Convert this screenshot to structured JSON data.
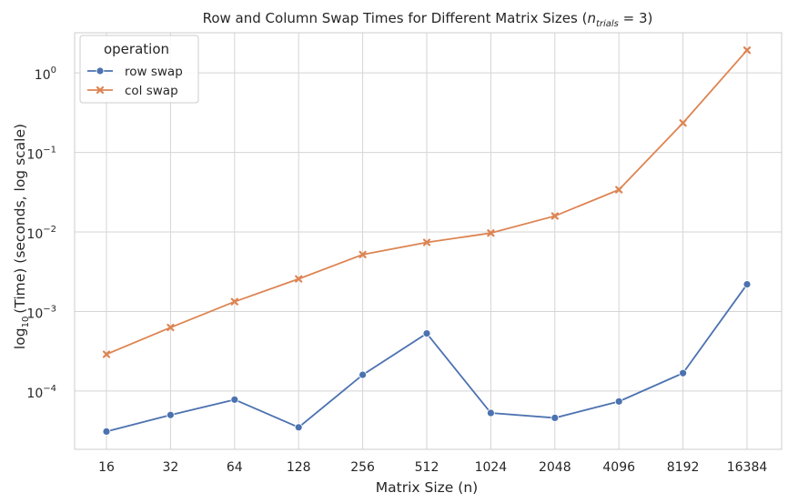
{
  "chart_data": {
    "type": "line",
    "title": "Row and Column Swap Times for Different Matrix Sizes (",
    "title_var": "n",
    "title_sub": "trials",
    "title_end": " = 3)",
    "xlabel": "Matrix Size (n)",
    "ylabel_prefix": "log",
    "ylabel_sub": "10",
    "ylabel_suffix": "(Time) (seconds, log scale)",
    "yscale": "log",
    "ylim": [
      1.85e-05,
      3.2
    ],
    "categories": [
      "16",
      "32",
      "64",
      "128",
      "256",
      "512",
      "1024",
      "2048",
      "4096",
      "8192",
      "16384"
    ],
    "yticks": [
      {
        "value": 0.0001,
        "base": "10",
        "exp": "−4"
      },
      {
        "value": 0.001,
        "base": "10",
        "exp": "−3"
      },
      {
        "value": 0.01,
        "base": "10",
        "exp": "−2"
      },
      {
        "value": 0.1,
        "base": "10",
        "exp": "−1"
      },
      {
        "value": 1,
        "base": "10",
        "exp": "0"
      }
    ],
    "grid": true,
    "legend": {
      "title": "operation",
      "placement": "top-left"
    },
    "series": [
      {
        "name": "row swap",
        "color": "#4c72b0",
        "marker": "circle",
        "values": [
          3.1e-05,
          5e-05,
          7.8e-05,
          3.5e-05,
          0.00016,
          0.00053,
          5.3e-05,
          4.6e-05,
          7.4e-05,
          0.000168,
          0.0022
        ]
      },
      {
        "name": "col swap",
        "color": "#dd8452",
        "marker": "x",
        "values": [
          0.00029,
          0.00063,
          0.00133,
          0.00257,
          0.0052,
          0.0074,
          0.0097,
          0.0159,
          0.034,
          0.235,
          1.93
        ]
      }
    ]
  }
}
